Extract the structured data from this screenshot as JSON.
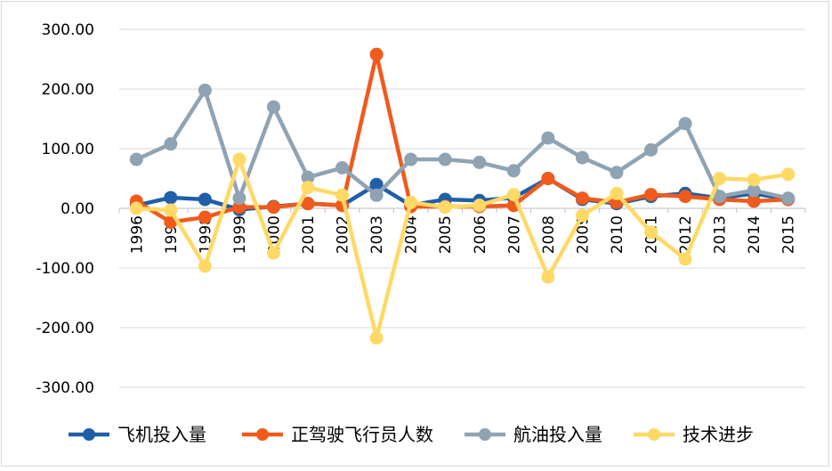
{
  "chart_data": {
    "type": "line",
    "title": "",
    "xlabel": "",
    "ylabel": "",
    "ylim": [
      -300,
      300
    ],
    "y_tick_step": 100,
    "y_tick_format": "2 decimals",
    "grid": true,
    "legend_position": "bottom",
    "categories": [
      "1996",
      "1997",
      "1998",
      "1999",
      "2000",
      "2001",
      "2002",
      "2003",
      "2004",
      "2005",
      "2006",
      "2007",
      "2008",
      "2009",
      "2010",
      "2011",
      "2012",
      "2013",
      "2014",
      "2015"
    ],
    "series": [
      {
        "name": "飞机投入量",
        "color": "#1f5fa8",
        "values": [
          5,
          18,
          15,
          -2,
          3,
          8,
          5,
          40,
          5,
          15,
          13,
          18,
          50,
          15,
          8,
          20,
          25,
          17,
          25,
          15
        ]
      },
      {
        "name": "正驾驶飞行员人数",
        "color": "#f05a1c",
        "values": [
          12,
          -23,
          -15,
          2,
          2,
          8,
          5,
          258,
          3,
          3,
          3,
          5,
          50,
          17,
          10,
          23,
          20,
          15,
          12,
          15
        ]
      },
      {
        "name": "航油投入量",
        "color": "#8fa3b3",
        "values": [
          82,
          108,
          198,
          17,
          170,
          52,
          68,
          22,
          82,
          82,
          77,
          63,
          118,
          85,
          60,
          98,
          142,
          20,
          30,
          17
        ]
      },
      {
        "name": "技术进步",
        "color": "#ffd966",
        "values": [
          0,
          -3,
          -97,
          82,
          -75,
          35,
          22,
          -217,
          10,
          2,
          5,
          23,
          -115,
          -12,
          25,
          -40,
          -85,
          50,
          48,
          57
        ]
      }
    ]
  }
}
